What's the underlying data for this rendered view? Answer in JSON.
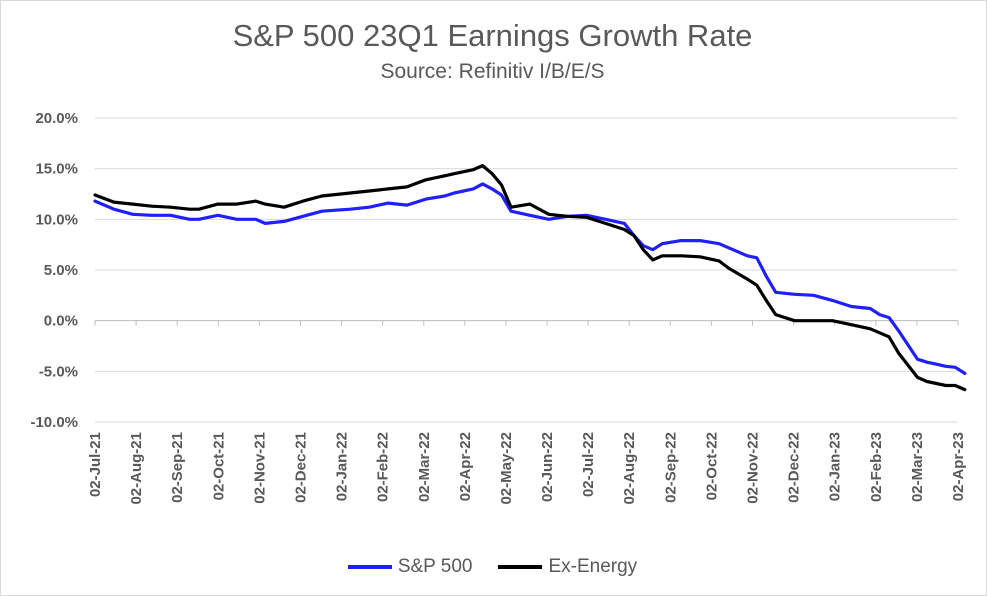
{
  "chart_data": {
    "type": "line",
    "title": "S&P 500 23Q1 Earnings Growth Rate",
    "subtitle": "Source: Refinitiv I/B/E/S",
    "xlabel": "",
    "ylabel": "",
    "ylim": [
      -10,
      20
    ],
    "grid": true,
    "legend": "bottom",
    "y_ticks": [
      "20.0%",
      "15.0%",
      "10.0%",
      "5.0%",
      "0.0%",
      "-5.0%",
      "-10.0%"
    ],
    "y_tick_values": [
      20,
      15,
      10,
      5,
      0,
      -5,
      -10
    ],
    "x_ticks": [
      "02-Jul-21",
      "02-Aug-21",
      "02-Sep-21",
      "02-Oct-21",
      "02-Nov-21",
      "02-Dec-21",
      "02-Jan-22",
      "02-Feb-22",
      "02-Mar-22",
      "02-Apr-22",
      "02-May-22",
      "02-Jun-22",
      "02-Jul-22",
      "02-Aug-22",
      "02-Sep-22",
      "02-Oct-22",
      "02-Nov-22",
      "02-Dec-22",
      "02-Jan-23",
      "02-Feb-23",
      "02-Mar-23",
      "02-Apr-23"
    ],
    "x": [
      "2021-07-02",
      "2021-07-16",
      "2021-07-30",
      "2021-08-13",
      "2021-08-27",
      "2021-09-10",
      "2021-09-17",
      "2021-10-01",
      "2021-10-15",
      "2021-10-29",
      "2021-11-05",
      "2021-11-19",
      "2021-12-03",
      "2021-12-17",
      "2022-01-07",
      "2022-01-21",
      "2022-02-04",
      "2022-02-18",
      "2022-03-04",
      "2022-03-18",
      "2022-03-25",
      "2022-04-08",
      "2022-04-15",
      "2022-04-22",
      "2022-04-29",
      "2022-05-06",
      "2022-05-20",
      "2022-06-03",
      "2022-06-17",
      "2022-07-01",
      "2022-07-15",
      "2022-07-29",
      "2022-08-05",
      "2022-08-12",
      "2022-08-19",
      "2022-08-26",
      "2022-09-09",
      "2022-09-23",
      "2022-10-07",
      "2022-10-14",
      "2022-10-28",
      "2022-11-04",
      "2022-11-11",
      "2022-11-18",
      "2022-12-02",
      "2022-12-16",
      "2022-12-30",
      "2023-01-13",
      "2023-01-27",
      "2023-02-03",
      "2023-02-10",
      "2023-02-17",
      "2023-03-03",
      "2023-03-10",
      "2023-03-17",
      "2023-03-24",
      "2023-03-31",
      "2023-04-07"
    ],
    "series": [
      {
        "name": "S&P 500",
        "color": "#1f1fff",
        "values": [
          11.8,
          11.0,
          10.5,
          10.4,
          10.4,
          10.0,
          10.0,
          10.4,
          10.0,
          10.0,
          9.6,
          9.8,
          10.3,
          10.8,
          11.0,
          11.2,
          11.6,
          11.4,
          12.0,
          12.3,
          12.6,
          13.0,
          13.5,
          13.0,
          12.4,
          10.8,
          10.4,
          10.0,
          10.3,
          10.4,
          10.0,
          9.6,
          8.4,
          7.4,
          7.0,
          7.6,
          7.9,
          7.9,
          7.6,
          7.2,
          6.4,
          6.2,
          4.4,
          2.8,
          2.6,
          2.5,
          2.0,
          1.4,
          1.2,
          0.6,
          0.3,
          -1.0,
          -3.8,
          -4.1,
          -4.3,
          -4.5,
          -4.6,
          -5.2
        ]
      },
      {
        "name": "Ex-Energy",
        "color": "#000000",
        "values": [
          12.4,
          11.7,
          11.5,
          11.3,
          11.2,
          11.0,
          11.0,
          11.5,
          11.5,
          11.8,
          11.5,
          11.2,
          11.8,
          12.3,
          12.6,
          12.8,
          13.0,
          13.2,
          13.9,
          14.3,
          14.5,
          14.9,
          15.3,
          14.5,
          13.4,
          11.2,
          11.5,
          10.5,
          10.3,
          10.2,
          9.6,
          9.0,
          8.4,
          7.0,
          6.0,
          6.4,
          6.4,
          6.3,
          5.9,
          5.2,
          4.1,
          3.5,
          2.0,
          0.6,
          0.0,
          0.0,
          0.0,
          -0.4,
          -0.8,
          -1.2,
          -1.6,
          -3.2,
          -5.6,
          -6.0,
          -6.2,
          -6.4,
          -6.4,
          -6.8
        ]
      }
    ]
  }
}
